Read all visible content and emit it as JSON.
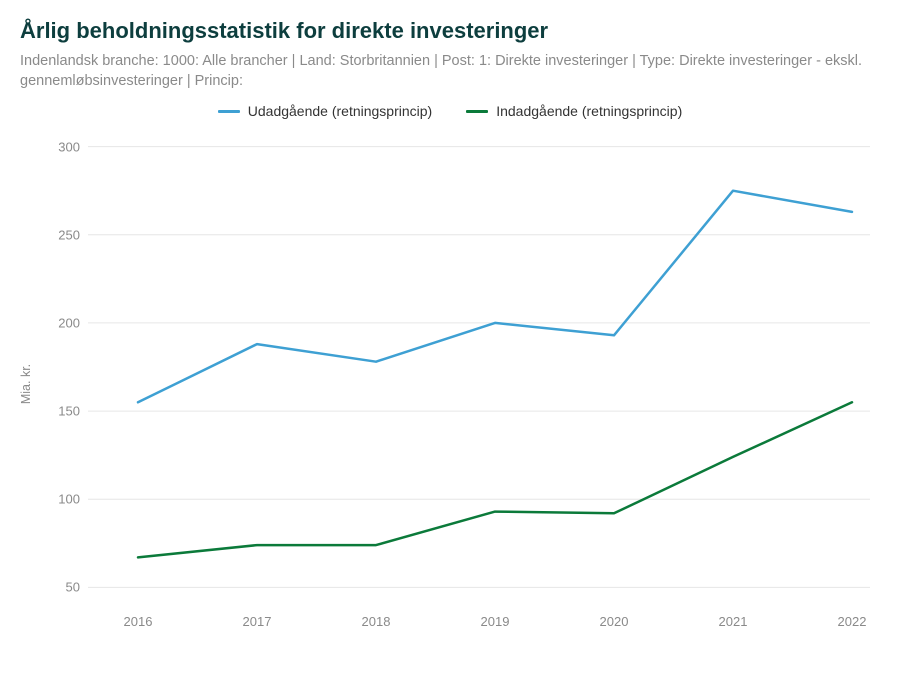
{
  "title": "Årlig beholdningsstatistik for direkte investeringer",
  "subtitle": "Indenlandsk branche: 1000: Alle brancher | Land: Storbritannien | Post: 1: Direkte investeringer | Type: Direkte investeringer - ekskl. gennemløbsinvesteringer | Princip:",
  "chart": {
    "type": "line",
    "background_color": "#ffffff",
    "grid_color": "#e6e6e6",
    "grid_stroke_width": 1,
    "axis_text_color": "#8a8a8a",
    "title_color": "#0d3e3e",
    "title_fontsize": 22,
    "subtitle_fontsize": 14.5,
    "label_fontsize": 13,
    "ylabel": "Mia. kr.",
    "x_categories": [
      "2016",
      "2017",
      "2018",
      "2019",
      "2020",
      "2021",
      "2022"
    ],
    "y_ticks": [
      50,
      100,
      150,
      200,
      250,
      300
    ],
    "ylim": [
      40,
      310
    ],
    "line_width": 2.5,
    "legend_position": "top-center",
    "series": [
      {
        "name": "Udadgående (retningsprincip)",
        "color": "#3ea0d3",
        "values": [
          155,
          188,
          178,
          200,
          193,
          275,
          263
        ]
      },
      {
        "name": "Indadgående (retningsprincip)",
        "color": "#0b7a3a",
        "values": [
          67,
          74,
          74,
          93,
          92,
          124,
          155
        ]
      }
    ]
  }
}
